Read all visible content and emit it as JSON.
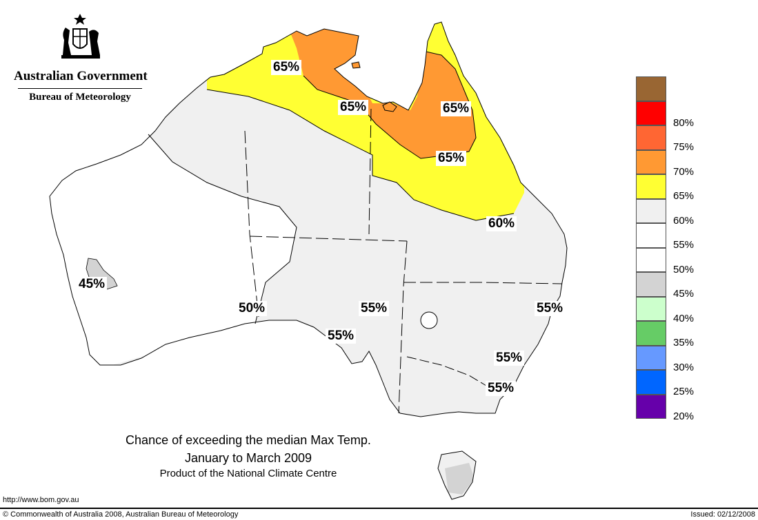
{
  "header": {
    "gov_title": "Australian Government",
    "agency": "Bureau of Meteorology"
  },
  "title": {
    "line1": "Chance of exceeding the median Max Temp.",
    "line2": "January to March 2009",
    "line3": "Product of the National Climate Centre"
  },
  "map_labels": [
    "65%",
    "65%",
    "65%",
    "65%",
    "60%",
    "45%",
    "50%",
    "55%",
    "55%",
    "55%",
    "55%",
    "55%"
  ],
  "legend": [
    {
      "label": "",
      "color": "#996633"
    },
    {
      "label": "80%",
      "color": "#ff0000"
    },
    {
      "label": "75%",
      "color": "#ff6633"
    },
    {
      "label": "70%",
      "color": "#ff9933"
    },
    {
      "label": "65%",
      "color": "#ffff33"
    },
    {
      "label": "60%",
      "color": "#f0f0f0"
    },
    {
      "label": "55%",
      "color": "#ffffff"
    },
    {
      "label": "50%",
      "color": "#ffffff"
    },
    {
      "label": "45%",
      "color": "#d3d3d3"
    },
    {
      "label": "40%",
      "color": "#ccffcc"
    },
    {
      "label": "35%",
      "color": "#66cc66"
    },
    {
      "label": "30%",
      "color": "#6699ff"
    },
    {
      "label": "25%",
      "color": "#0066ff"
    },
    {
      "label": "20%",
      "color": "#6600aa"
    }
  ],
  "footer": {
    "url": "http://www.bom.gov.au",
    "copyright": "© Commonwealth of Australia 2008, Australian Bureau of Meteorology",
    "issued": "Issued: 02/12/2008"
  }
}
